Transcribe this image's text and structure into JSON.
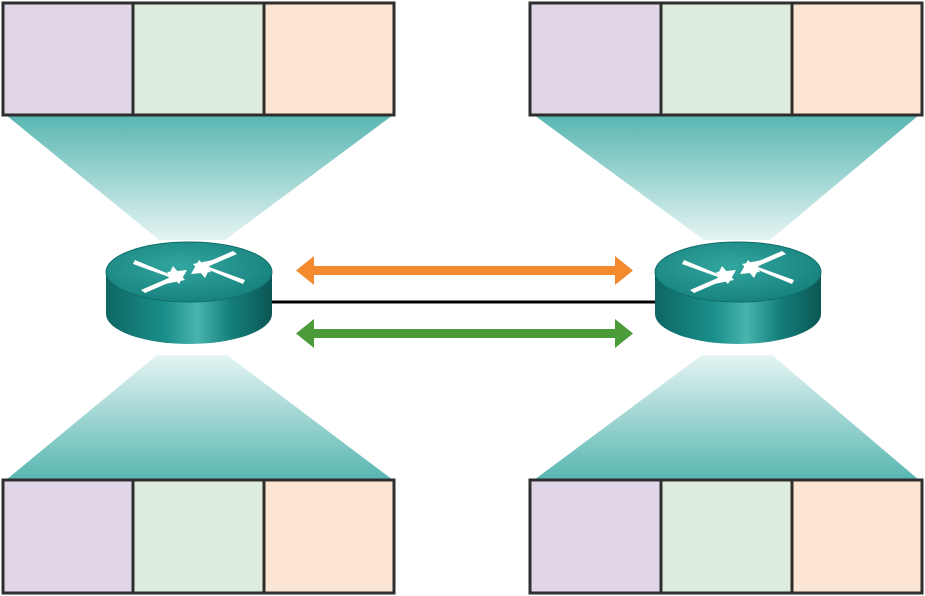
{
  "colors": {
    "cell_1": "#e0d6e8",
    "cell_2": "#ddecdc",
    "cell_3": "#fde5d4",
    "cell_border": "#2e2e2e",
    "beam_dark": "#5ab7b3",
    "beam_light": "#d8efee",
    "router_top": "#1f8f8b",
    "router_body": "#10706c",
    "link_line": "#000000",
    "arrow_top": "#f48a2e",
    "arrow_bottom": "#4c9b3a"
  },
  "icons": {
    "router": "router-icon",
    "link": "network-link",
    "arrow_top": "double-arrow-orange",
    "arrow_bottom": "double-arrow-green"
  }
}
